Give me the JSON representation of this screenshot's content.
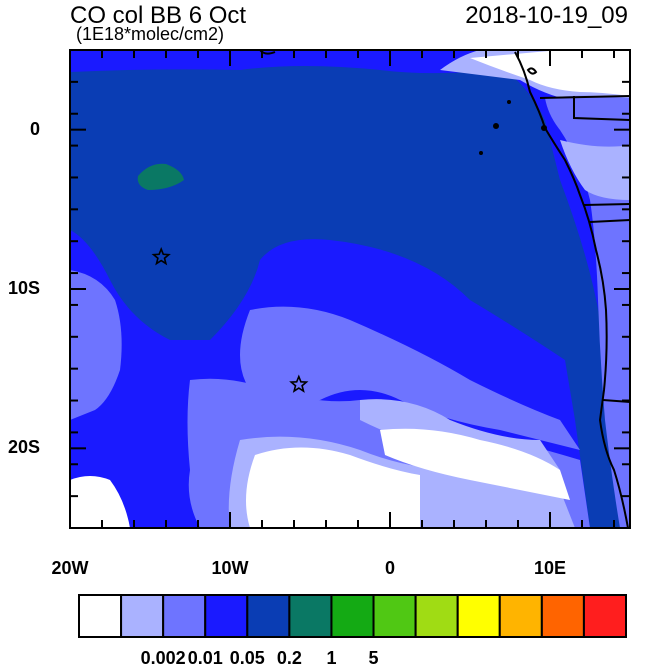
{
  "header": {
    "title": "CO col BB 6 Oct",
    "units": "(1E18*molec/cm2)",
    "date": "2018-10-19_09"
  },
  "map": {
    "lon_range": [
      -20,
      15
    ],
    "lat_range": [
      -25,
      5
    ],
    "x_ticks": [
      {
        "lon": -20,
        "label": "20W"
      },
      {
        "lon": -10,
        "label": "10W"
      },
      {
        "lon": 0,
        "label": "0"
      },
      {
        "lon": 10,
        "label": "10E"
      }
    ],
    "y_ticks": [
      {
        "lat": 0,
        "label": "0"
      },
      {
        "lat": -10,
        "label": "10S"
      },
      {
        "lat": -20,
        "label": "20S"
      }
    ],
    "markers": [
      {
        "name": "star-marker-1",
        "lon": -14.3,
        "lat": -8
      },
      {
        "name": "star-marker-2",
        "lon": -5.7,
        "lat": -16
      }
    ]
  },
  "colorbar": {
    "colors": [
      "#ffffff",
      "#aab2ff",
      "#6e74ff",
      "#1a1aff",
      "#0a3db4",
      "#0a7864",
      "#14aa14",
      "#50c814",
      "#a0dc14",
      "#ffff00",
      "#ffb400",
      "#ff6400",
      "#ff1e1e"
    ],
    "labels": [
      {
        "after_box": 2,
        "label": "0.002"
      },
      {
        "after_box": 3,
        "label": "0.01"
      },
      {
        "after_box": 4,
        "label": "0.05"
      },
      {
        "after_box": 5,
        "label": "0.2"
      },
      {
        "after_box": 6,
        "label": "1"
      },
      {
        "after_box": 7,
        "label": "5"
      }
    ]
  }
}
